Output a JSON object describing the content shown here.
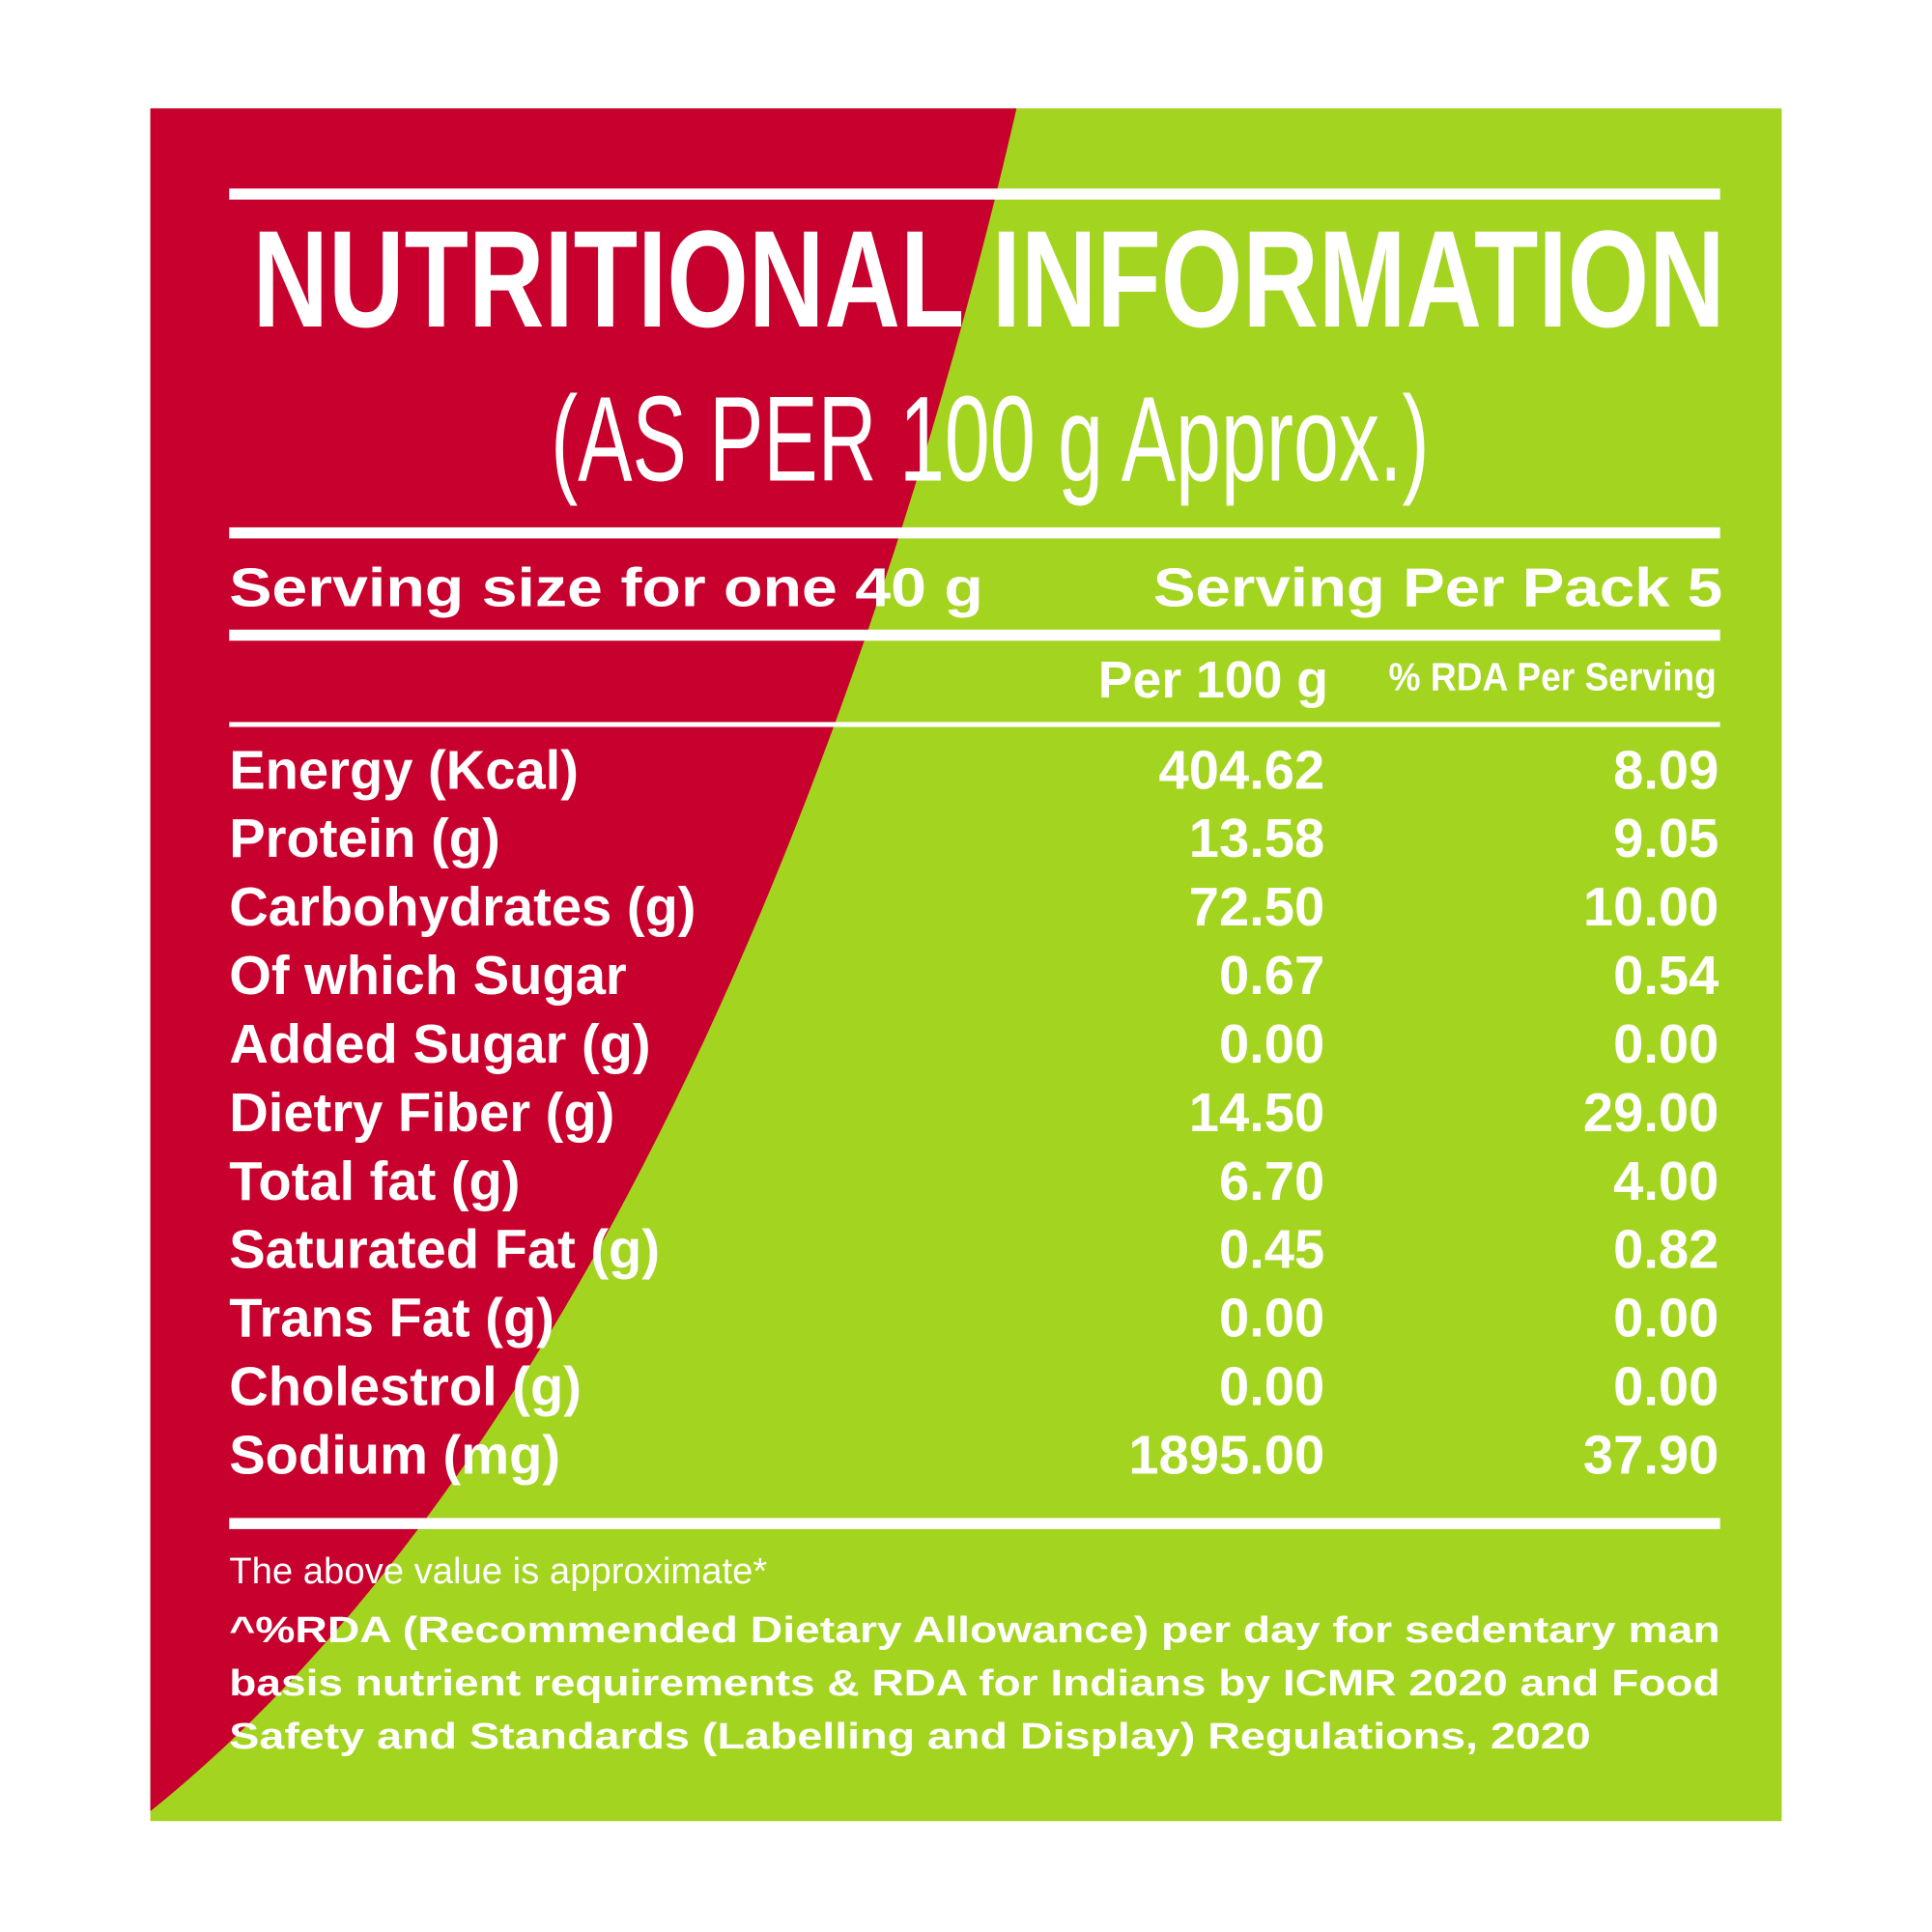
{
  "header": {
    "title": "NUTRITIONAL INFORMATION",
    "subtitle": "(AS PER 100 g Approx.)"
  },
  "serving": {
    "size": "Serving size for one 40 g",
    "per_pack": "Serving Per Pack 5"
  },
  "table": {
    "columns": [
      "Per 100 g",
      "% RDA Per Serving"
    ],
    "rows": [
      [
        "Energy (Kcal)",
        "404.62",
        "8.09"
      ],
      [
        "Protein (g)",
        "13.58",
        "9.05"
      ],
      [
        "Carbohydrates (g)",
        "72.50",
        "10.00"
      ],
      [
        "Of which Sugar",
        "0.67",
        "0.54"
      ],
      [
        "Added Sugar (g)",
        "0.00",
        "0.00"
      ],
      [
        "Dietry Fiber (g)",
        "14.50",
        "29.00"
      ],
      [
        "Total fat (g)",
        "6.70",
        "4.00"
      ],
      [
        "Saturated Fat (g)",
        "0.45",
        "0.82"
      ],
      [
        "Trans Fat (g)",
        "0.00",
        "0.00"
      ],
      [
        "Cholestrol (g)",
        "0.00",
        "0.00"
      ],
      [
        "Sodium (mg)",
        "1895.00",
        "37.90"
      ]
    ]
  },
  "footer": {
    "note": "The above value is approximate*",
    "rda_note": [
      "^%RDA (Recommended Dietary Allowance) per day for sedentary man",
      "basis nutrient requirements & RDA for Indians by ICMR 2020 and Food",
      "Safety and Standards (Labelling and Display) Regulations, 2020"
    ]
  }
}
